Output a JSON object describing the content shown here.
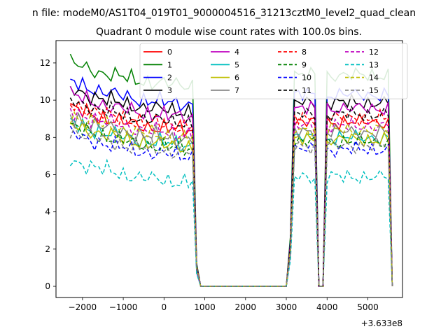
{
  "chart_data": {
    "type": "line",
    "suptitle": "n file: modeM0/AS1T04_019T01_9000004516_31213cztM0_level2_quad_clean",
    "title": "Quadrant 0 module wise count rates with 100.0s bins.",
    "xlabel": "",
    "ylabel": "",
    "offset_text": "+3.633e8",
    "xlim": [
      -2650,
      5850
    ],
    "ylim": [
      -0.6,
      13.2
    ],
    "xticks": [
      -2000,
      -1000,
      0,
      1000,
      2000,
      3000,
      4000,
      5000
    ],
    "xtick_labels": [
      "−2000",
      "−1000",
      "0",
      "1000",
      "2000",
      "3000",
      "4000",
      "5000"
    ],
    "yticks": [
      0,
      2,
      4,
      6,
      8,
      10,
      12
    ],
    "ytick_labels": [
      "0",
      "2",
      "4",
      "6",
      "8",
      "10",
      "12"
    ],
    "legend": {
      "placement": "upper-center",
      "ncol": 4
    },
    "series": [
      {
        "name": "0",
        "color": "#ff0000",
        "dash": "solid",
        "level": 8.4,
        "phase": 0.3
      },
      {
        "name": "1",
        "color": "#008000",
        "dash": "solid",
        "level": 10.8,
        "phase": 1.1
      },
      {
        "name": "2",
        "color": "#0000ff",
        "dash": "solid",
        "level": 9.8,
        "phase": 2.2
      },
      {
        "name": "3",
        "color": "#000000",
        "dash": "solid",
        "level": 9.4,
        "phase": 3.0
      },
      {
        "name": "4",
        "color": "#bf00bf",
        "dash": "solid",
        "level": 9.1,
        "phase": 0.7
      },
      {
        "name": "5",
        "color": "#00bfbf",
        "dash": "solid",
        "level": 7.6,
        "phase": 1.9
      },
      {
        "name": "6",
        "color": "#bfbf00",
        "dash": "solid",
        "level": 7.5,
        "phase": 2.6
      },
      {
        "name": "7",
        "color": "#808080",
        "dash": "solid",
        "level": 7.9,
        "phase": 3.7
      },
      {
        "name": "8",
        "color": "#ff0000",
        "dash": "dashed",
        "level": 8.6,
        "phase": 4.1
      },
      {
        "name": "9",
        "color": "#008000",
        "dash": "dashed",
        "level": 7.4,
        "phase": 0.2
      },
      {
        "name": "10",
        "color": "#0000ff",
        "dash": "dashed",
        "level": 7.0,
        "phase": 1.4
      },
      {
        "name": "11",
        "color": "#000000",
        "dash": "dashed",
        "level": 8.8,
        "phase": 2.9
      },
      {
        "name": "12",
        "color": "#bf00bf",
        "dash": "dashed",
        "level": 8.2,
        "phase": 3.3
      },
      {
        "name": "13",
        "color": "#00bfbf",
        "dash": "dashed",
        "level": 5.6,
        "phase": 4.6
      },
      {
        "name": "14",
        "color": "#bfbf00",
        "dash": "dashed",
        "level": 8.0,
        "phase": 5.0
      },
      {
        "name": "15",
        "color": "#808080",
        "dash": "dashed",
        "level": 7.2,
        "phase": 5.5
      }
    ],
    "time_segments": {
      "start": -2300,
      "step": 100,
      "count": 80,
      "active_ranges": [
        [
          -2300,
          850
        ],
        [
          3100,
          3750
        ],
        [
          3950,
          5550
        ]
      ],
      "gap_value": 0
    }
  }
}
